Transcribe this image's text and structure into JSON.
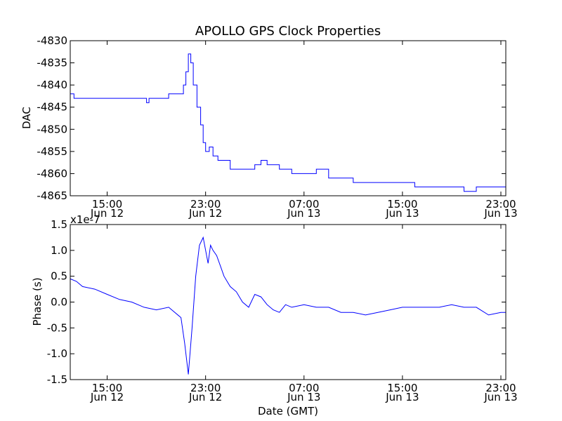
{
  "title": "APOLLO GPS Clock Properties",
  "x_ticks": [
    {
      "t": 15,
      "line1": "15:00",
      "line2": "Jun 12"
    },
    {
      "t": 23,
      "line1": "23:00",
      "line2": "Jun 12"
    },
    {
      "t": 31,
      "line1": "07:00",
      "line2": "Jun 13"
    },
    {
      "t": 39,
      "line1": "15:00",
      "line2": "Jun 13"
    },
    {
      "t": 47,
      "line1": "23:00",
      "line2": "Jun 13"
    }
  ],
  "chart_data": [
    {
      "type": "line",
      "title": "APOLLO GPS Clock Properties",
      "xlabel": "",
      "ylabel": "DAC",
      "x_unit": "hours since 00:00 Jun 12 (GMT)",
      "xlim": [
        12.0,
        47.4
      ],
      "ylim": [
        -4865,
        -4830
      ],
      "yticks": [
        -4830,
        -4835,
        -4840,
        -4845,
        -4850,
        -4855,
        -4860,
        -4865
      ],
      "grid": false,
      "color": "#0000ff",
      "series": [
        {
          "x": [
            12.0,
            12.3,
            12.5,
            13.0,
            13.5,
            14.0,
            15.0,
            16.0,
            17.0,
            18.0,
            18.2,
            18.4,
            19.0,
            20.0,
            21.0,
            21.2,
            21.4,
            21.6,
            21.8,
            22.0,
            22.3,
            22.6,
            22.8,
            23.0,
            23.3,
            23.6,
            24.0,
            25.0,
            26.0,
            27.0,
            27.5,
            28.0,
            29.0,
            30.0,
            31.0,
            32.0,
            33.0,
            34.0,
            35.0,
            36.0,
            37.0,
            38.0,
            39.0,
            40.0,
            41.0,
            42.0,
            43.0,
            44.0,
            45.0,
            46.0,
            47.0,
            47.4
          ],
          "y": [
            -4842,
            -4843,
            -4843,
            -4843,
            -4843,
            -4843,
            -4843,
            -4843,
            -4843,
            -4843,
            -4844,
            -4843,
            -4843,
            -4842,
            -4842,
            -4840,
            -4837,
            -4833,
            -4835,
            -4840,
            -4845,
            -4849,
            -4853,
            -4855,
            -4854,
            -4856,
            -4857,
            -4859,
            -4859,
            -4858,
            -4857,
            -4858,
            -4859,
            -4860,
            -4860,
            -4859,
            -4861,
            -4861,
            -4862,
            -4862,
            -4862,
            -4862,
            -4862,
            -4863,
            -4863,
            -4863,
            -4863,
            -4864,
            -4863,
            -4863,
            -4863,
            -4862
          ]
        }
      ]
    },
    {
      "type": "line",
      "title": "",
      "xlabel": "Date (GMT)",
      "ylabel": "Phase (s)",
      "y_scale_label": "x1e-7",
      "x_unit": "hours since 00:00 Jun 12 (GMT)",
      "xlim": [
        12.0,
        47.4
      ],
      "ylim": [
        -1.5,
        1.5
      ],
      "yticks": [
        -1.5,
        -1.0,
        -0.5,
        0.0,
        0.5,
        1.0,
        1.5
      ],
      "ytick_labels": [
        "-1.5",
        "-1.0",
        "-0.5",
        "0.0",
        "0.5",
        "1.0",
        "1.5"
      ],
      "grid": false,
      "color": "#0000ff",
      "series": [
        {
          "x": [
            12.0,
            12.5,
            13.0,
            14.0,
            15.0,
            16.0,
            17.0,
            18.0,
            19.0,
            20.0,
            21.0,
            21.3,
            21.6,
            21.9,
            22.2,
            22.5,
            22.8,
            23.0,
            23.2,
            23.4,
            23.6,
            23.9,
            24.2,
            24.5,
            25.0,
            25.5,
            26.0,
            26.5,
            27.0,
            27.5,
            28.0,
            28.5,
            29.0,
            29.5,
            30.0,
            31.0,
            32.0,
            33.0,
            34.0,
            35.0,
            36.0,
            37.0,
            38.0,
            39.0,
            40.0,
            41.0,
            42.0,
            43.0,
            44.0,
            45.0,
            46.0,
            47.0,
            47.4
          ],
          "y": [
            0.45,
            0.4,
            0.3,
            0.25,
            0.15,
            0.05,
            0.0,
            -0.1,
            -0.15,
            -0.1,
            -0.3,
            -0.8,
            -1.4,
            -0.5,
            0.5,
            1.1,
            1.25,
            1.0,
            0.75,
            1.1,
            1.0,
            0.9,
            0.7,
            0.5,
            0.3,
            0.2,
            0.0,
            -0.1,
            0.15,
            0.1,
            -0.05,
            -0.15,
            -0.2,
            -0.05,
            -0.1,
            -0.05,
            -0.1,
            -0.1,
            -0.2,
            -0.2,
            -0.25,
            -0.2,
            -0.15,
            -0.1,
            -0.1,
            -0.1,
            -0.1,
            -0.05,
            -0.1,
            -0.1,
            -0.25,
            -0.2,
            -0.2
          ]
        }
      ]
    }
  ]
}
